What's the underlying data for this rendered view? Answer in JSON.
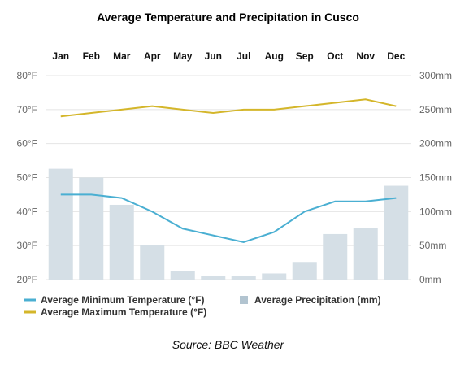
{
  "chart_data": {
    "type": "bar+line",
    "title": "Average Temperature and Precipitation in Cusco",
    "categories": [
      "Jan",
      "Feb",
      "Mar",
      "Apr",
      "May",
      "Jun",
      "Jul",
      "Aug",
      "Sep",
      "Oct",
      "Nov",
      "Dec"
    ],
    "precipitation": {
      "name": "Average Precipitation (mm)",
      "values": [
        163,
        150,
        110,
        51,
        12,
        5,
        5,
        9,
        26,
        67,
        76,
        138
      ],
      "color": "#d5dfe6",
      "legend_color": "#b2c4d0"
    },
    "min_temp": {
      "name": "Average Minimum Temperature (°F)",
      "values": [
        45,
        45,
        44,
        40,
        35,
        33,
        31,
        34,
        40,
        43,
        43,
        44
      ],
      "color": "#4aafd2"
    },
    "max_temp": {
      "name": "Average Maximum Temperature (°F)",
      "values": [
        68,
        69,
        70,
        71,
        70,
        69,
        70,
        70,
        71,
        72,
        73,
        71
      ],
      "color": "#d4b62a"
    },
    "y_left": {
      "ticks": [
        "80°F",
        "70°F",
        "60°F",
        "50°F",
        "40°F",
        "30°F",
        "20°F"
      ],
      "values": [
        80,
        70,
        60,
        50,
        40,
        30,
        20
      ],
      "ylim": [
        20,
        80
      ]
    },
    "y_right": {
      "ticks": [
        "300mm",
        "250mm",
        "200mm",
        "150mm",
        "100mm",
        "50mm",
        "0mm"
      ],
      "values": [
        300,
        250,
        200,
        150,
        100,
        50,
        0
      ],
      "ylim": [
        0,
        300
      ]
    },
    "grid": true,
    "legend_placement": "bottom",
    "source": "Source: BBC Weather"
  }
}
